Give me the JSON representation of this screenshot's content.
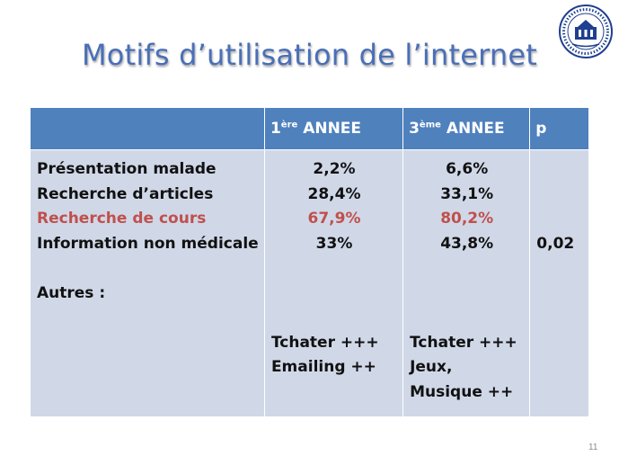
{
  "title": "Motifs d’utilisation de l’internet",
  "logo": {
    "icon": "university-seal-logo"
  },
  "slide_number": "11",
  "colors": {
    "header_bg": "#4f81bd",
    "cell_bg": "#d0d8e8",
    "highlight": "#c0504d",
    "title": "#4a6fb8"
  },
  "table": {
    "headers": {
      "col1": {
        "base": "1",
        "sup": "ère",
        "rest": " ANNEE"
      },
      "col2": {
        "base": "3",
        "sup": "ème",
        "rest": " ANNEE"
      },
      "col3": "p"
    },
    "labels": {
      "presentation": "Présentation malade",
      "articles": "Recherche d’articles",
      "cours": "Recherche de cours",
      "info": "Information non médicale",
      "autres": "Autres :"
    },
    "year1": {
      "presentation": "2,2%",
      "articles": "28,4%",
      "cours": "67,9%",
      "info": "33%",
      "autres": [
        "Tchater +++",
        "Emailing ++"
      ]
    },
    "year3": {
      "presentation": "6,6%",
      "articles": "33,1%",
      "cours": "80,2%",
      "info": "43,8%",
      "autres": [
        "Tchater +++",
        "Jeux,",
        "Musique ++"
      ]
    },
    "p_value": "0,02"
  }
}
